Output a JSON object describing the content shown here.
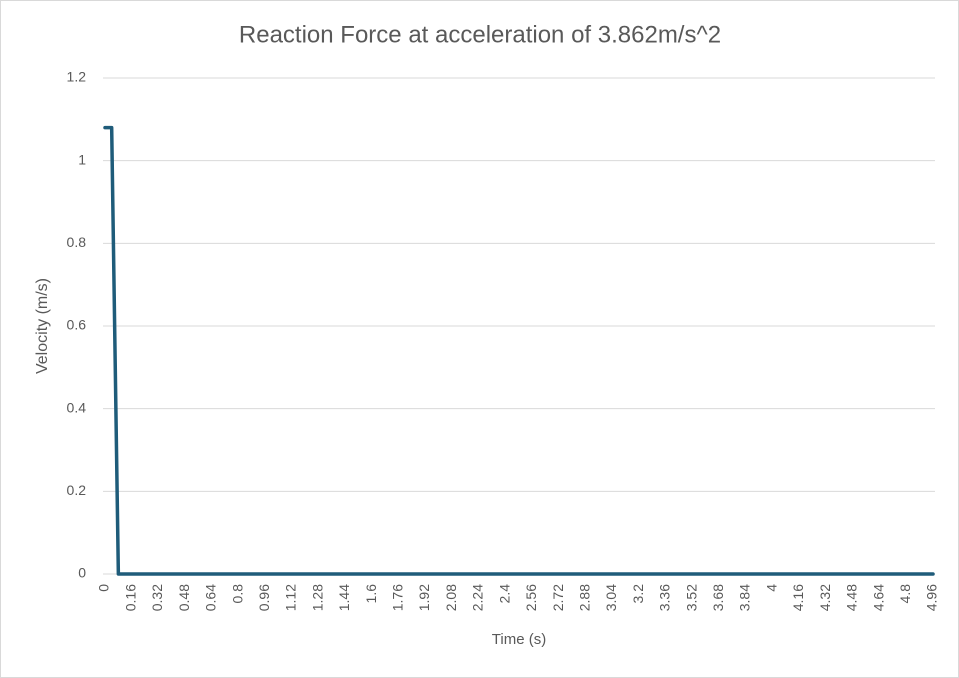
{
  "chart_data": {
    "type": "line",
    "title": "Reaction Force at acceleration of 3.862m/s^2",
    "x_label": "Time (s)",
    "y_label": "Velocity (m/s)",
    "categories": [
      0,
      null,
      null,
      null,
      0.16,
      null,
      null,
      null,
      0.32,
      null,
      null,
      null,
      0.48,
      null,
      null,
      null,
      0.64,
      null,
      null,
      null,
      0.8,
      null,
      null,
      null,
      0.96,
      null,
      null,
      null,
      1.12,
      null,
      null,
      null,
      1.28,
      null,
      null,
      null,
      1.44,
      null,
      null,
      null,
      1.6,
      null,
      null,
      null,
      1.76,
      null,
      null,
      null,
      1.92,
      null,
      null,
      null,
      2.08,
      null,
      null,
      null,
      2.24,
      null,
      null,
      null,
      2.4,
      null,
      null,
      null,
      2.56,
      null,
      null,
      null,
      2.72,
      null,
      null,
      null,
      2.88,
      null,
      null,
      null,
      3.04,
      null,
      null,
      null,
      3.2,
      null,
      null,
      null,
      3.36,
      null,
      null,
      null,
      3.52,
      null,
      null,
      null,
      3.68,
      null,
      null,
      null,
      3.84,
      null,
      null,
      null,
      4,
      null,
      null,
      null,
      4.16,
      null,
      null,
      null,
      4.32,
      null,
      null,
      null,
      4.48,
      null,
      null,
      null,
      4.64,
      null,
      null,
      null,
      4.8,
      null,
      null,
      null,
      4.96
    ],
    "series": [
      {
        "color": "#1f5c7a",
        "values": [
          1.08,
          1.08,
          0,
          0,
          0,
          0,
          0,
          0,
          0,
          0,
          0,
          0,
          0,
          0,
          0,
          0,
          0,
          0,
          0,
          0,
          0,
          0,
          0,
          0,
          0,
          0,
          0,
          0,
          0,
          0,
          0,
          0,
          0,
          0,
          0,
          0,
          0,
          0,
          0,
          0,
          0,
          0,
          0,
          0,
          0,
          0,
          0,
          0,
          0,
          0,
          0,
          0,
          0,
          0,
          0,
          0,
          0,
          0,
          0,
          0,
          0,
          0,
          0,
          0,
          0,
          0,
          0,
          0,
          0,
          0,
          0,
          0,
          0,
          0,
          0,
          0,
          0,
          0,
          0,
          0,
          0,
          0,
          0,
          0,
          0,
          0,
          0,
          0,
          0,
          0,
          0,
          0,
          0,
          0,
          0,
          0,
          0,
          0,
          0,
          0,
          0,
          0,
          0,
          0,
          0,
          0,
          0,
          0,
          0,
          0,
          0,
          0,
          0,
          0,
          0,
          0,
          0,
          0,
          0,
          0,
          0,
          0,
          0,
          0,
          0
        ]
      }
    ],
    "ylim": [
      0,
      1.2
    ],
    "yticks": [
      0,
      0.2,
      0.4,
      0.6,
      0.8,
      1,
      {
        "value": 1.2,
        "label": "1.2"
      }
    ],
    "grid": true
  }
}
